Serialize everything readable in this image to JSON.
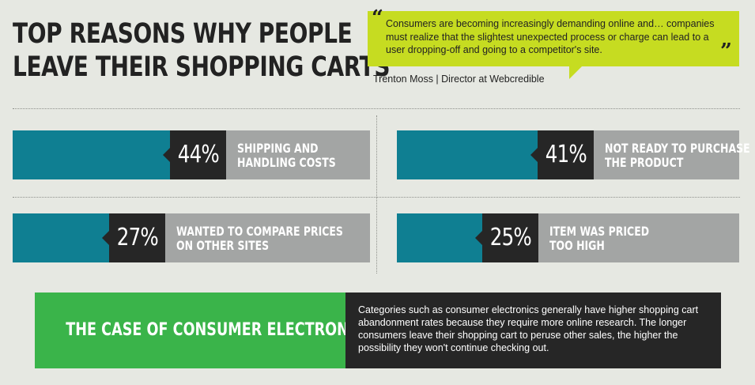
{
  "title": [
    "TOP REASONS WHY PEOPLE",
    "LEAVE THEIR SHOPPING CARTS"
  ],
  "quote": {
    "text": "Consumers are becoming increasingly demanding online and… companies must realize that the slightest unexpected process or charge can lead to a user dropping-off and going to a competitor's site.",
    "attribution": "Trenton Moss | Director at Webcredible"
  },
  "chart_data": {
    "type": "bar",
    "unit": "%",
    "categories": [
      "SHIPPING AND HANDLING COSTS",
      "NOT READY TO PURCHASE THE PRODUCT",
      "WANTED TO COMPARE PRICES ON OTHER SITES",
      "ITEM WAS PRICED TOO HIGH"
    ],
    "values": [
      44,
      41,
      27,
      25
    ],
    "value_labels": [
      "44%",
      "41%",
      "27%",
      "25%"
    ],
    "label_lines": [
      [
        "SHIPPING AND",
        "HANDLING COSTS"
      ],
      [
        "NOT READY TO PURCHASE",
        "THE PRODUCT"
      ],
      [
        "WANTED TO COMPARE PRICES",
        "ON OTHER SITES"
      ],
      [
        "ITEM WAS PRICED",
        "TOO HIGH"
      ]
    ],
    "ylim": [
      0,
      100
    ],
    "colors": {
      "fill": "#0f7f92",
      "track": "#a3a5a4",
      "label_bg": "#262626"
    }
  },
  "callout": {
    "title": "THE CASE OF CONSUMER ELECTRONICS",
    "text": "Categories such as consumer electronics generally have higher shopping cart abandonment rates because they require more online research. The longer consumers leave their shopping cart to peruse other sales, the higher the possibility they won't continue checking out.",
    "colors": {
      "title_bg": "#3ab44a",
      "text_bg": "#262626"
    }
  }
}
